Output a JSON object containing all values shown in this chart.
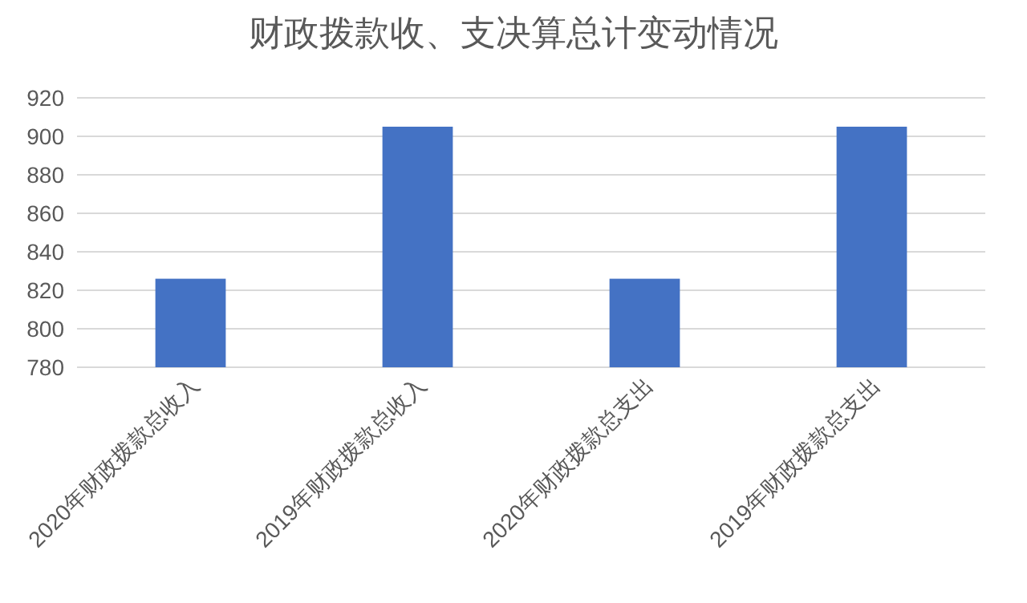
{
  "chart_data": {
    "type": "bar",
    "title": "财政拨款收、支决算总计变动情况",
    "categories": [
      "2020年财政拨款总收入",
      "2019年财政拨款总收入",
      "2020年财政拨款总支出",
      "2019年财政拨款总支出"
    ],
    "values": [
      826,
      905,
      826,
      905
    ],
    "color": "#4472c4",
    "ylim": [
      780,
      920
    ],
    "yticks": [
      780,
      800,
      820,
      840,
      860,
      880,
      900,
      920
    ],
    "grid": "y"
  }
}
